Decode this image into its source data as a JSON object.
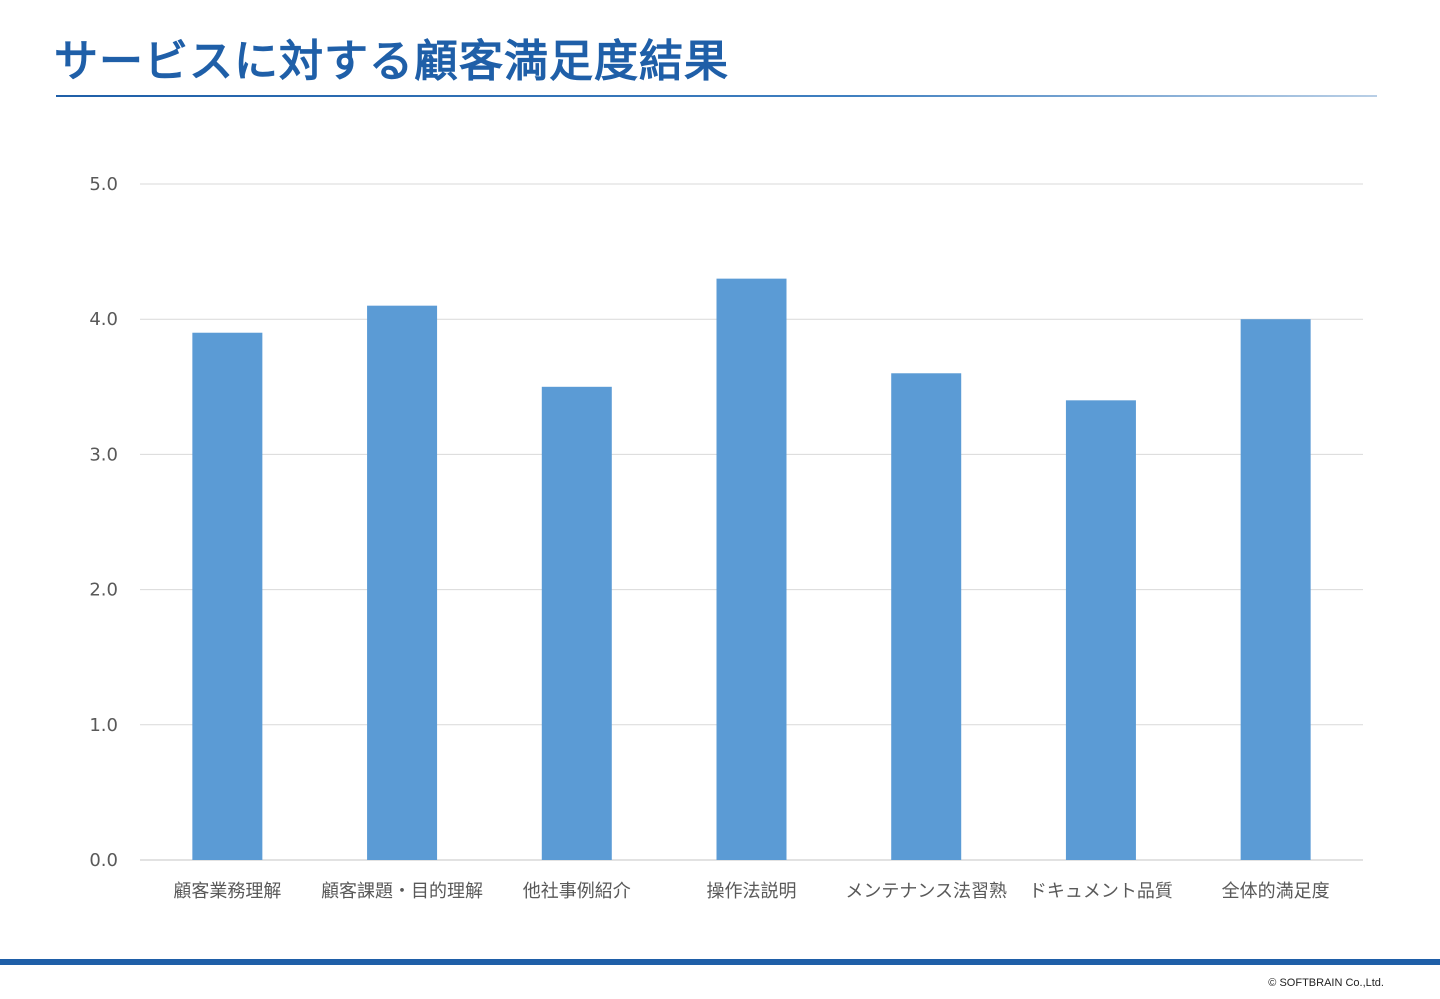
{
  "slide": {
    "title": "サービスに対する顧客満足度結果",
    "copyright": "© SOFTBRAIN Co.,Ltd."
  },
  "colors": {
    "title": "#1f5fa8",
    "bar": "#5b9bd5",
    "grid": "#d9d9d9",
    "footer": "#1f5fa8"
  },
  "chart_data": {
    "type": "bar",
    "categories": [
      "顧客業務理解",
      "顧客課題・目的理解",
      "他社事例紹介",
      "操作法説明",
      "メンテナンス法習熟",
      "ドキュメント品質",
      "全体的満足度"
    ],
    "values": [
      3.9,
      4.1,
      3.5,
      4.3,
      3.6,
      3.4,
      4.0
    ],
    "yticks": [
      "0.0",
      "1.0",
      "2.0",
      "3.0",
      "4.0",
      "5.0"
    ],
    "ylim": [
      0,
      5
    ],
    "grid": true,
    "legend": "none"
  }
}
